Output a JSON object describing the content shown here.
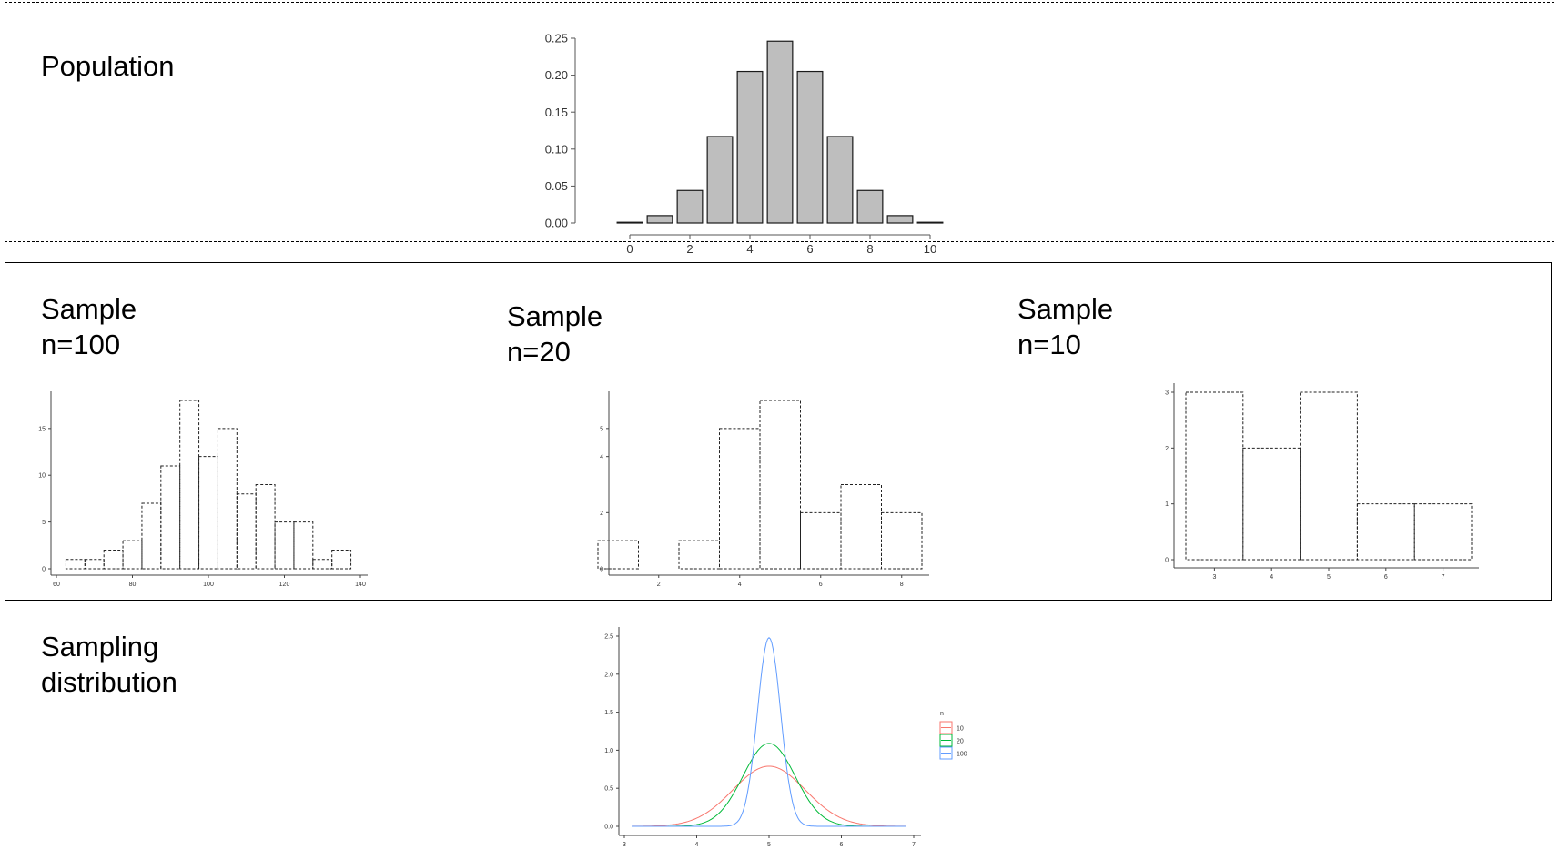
{
  "labels": {
    "population": "Population",
    "sample_100_line1": "Sample",
    "sample_100_line2": "n=100",
    "sample_20_line1": "Sample",
    "sample_20_line2": "n=20",
    "sample_10_line1": "Sample",
    "sample_10_line2": "n=10",
    "sampling_line1": "Sampling",
    "sampling_line2": "distribution"
  },
  "chart_data": [
    {
      "id": "population",
      "type": "bar",
      "bar_style": "filled-gray",
      "x": [
        0,
        1,
        2,
        3,
        4,
        5,
        6,
        7,
        8,
        9,
        10
      ],
      "values": [
        0.001,
        0.01,
        0.044,
        0.117,
        0.205,
        0.246,
        0.205,
        0.117,
        0.044,
        0.01,
        0.001
      ],
      "xlim": [
        0,
        10
      ],
      "ylim": [
        0,
        0.25
      ],
      "xticks": [
        0,
        2,
        4,
        6,
        8,
        10
      ],
      "yticks": [
        "0.00",
        "0.05",
        "0.10",
        "0.15",
        "0.20",
        "0.25"
      ],
      "grid": false
    },
    {
      "id": "sample-100",
      "type": "bar",
      "bar_style": "dashed-outline",
      "bin_width": 5,
      "x": [
        65,
        70,
        75,
        80,
        85,
        90,
        95,
        100,
        105,
        110,
        115,
        120,
        125,
        130,
        135
      ],
      "values": [
        1,
        1,
        2,
        3,
        7,
        11,
        18,
        12,
        15,
        8,
        9,
        5,
        5,
        1,
        2
      ],
      "xlim": [
        60,
        140
      ],
      "ylim": [
        0,
        18
      ],
      "xticks": [
        60,
        80,
        100,
        120,
        140
      ],
      "yticks": [
        0,
        5,
        10,
        15
      ],
      "grid": false
    },
    {
      "id": "sample-20",
      "type": "bar",
      "bar_style": "dashed-outline",
      "bin_width": 1,
      "x": [
        1,
        2,
        3,
        4,
        5,
        6,
        7,
        8
      ],
      "values": [
        1,
        0,
        1,
        5,
        6,
        2,
        3,
        2
      ],
      "xlim": [
        0.5,
        8.5
      ],
      "ylim": [
        0,
        6
      ],
      "xticks": [
        2,
        4,
        6,
        8
      ],
      "yticks": [
        0,
        2,
        4,
        5
      ],
      "grid": false
    },
    {
      "id": "sample-10",
      "type": "bar",
      "bar_style": "dashed-outline",
      "bin_width": 1,
      "x": [
        3,
        4,
        5,
        6,
        7
      ],
      "values": [
        3,
        2,
        3,
        1,
        1
      ],
      "xlim": [
        2.5,
        7.5
      ],
      "ylim": [
        0,
        3
      ],
      "xticks": [
        3,
        4,
        5,
        6,
        7
      ],
      "yticks": [
        0,
        1,
        2,
        3
      ],
      "grid": false
    },
    {
      "id": "sampling-distribution",
      "type": "line",
      "xlim": [
        3,
        7
      ],
      "ylim": [
        0,
        2.5
      ],
      "xticks": [
        3,
        4,
        5,
        6,
        7
      ],
      "yticks": [
        "0.0",
        "0.5",
        "1.0",
        "1.5",
        "2.0",
        "2.5"
      ],
      "legend_title": "n",
      "legend_placement": "right",
      "series": [
        {
          "name": "10",
          "color": "#F8766D",
          "mean": 5,
          "sd": 0.5,
          "peak": 0.79
        },
        {
          "name": "20",
          "color": "#00BA38",
          "mean": 5,
          "sd": 0.36,
          "peak": 1.09
        },
        {
          "name": "100",
          "color": "#619CFF",
          "mean": 5,
          "sd": 0.16,
          "peak": 2.48
        }
      ],
      "grid": false
    }
  ]
}
